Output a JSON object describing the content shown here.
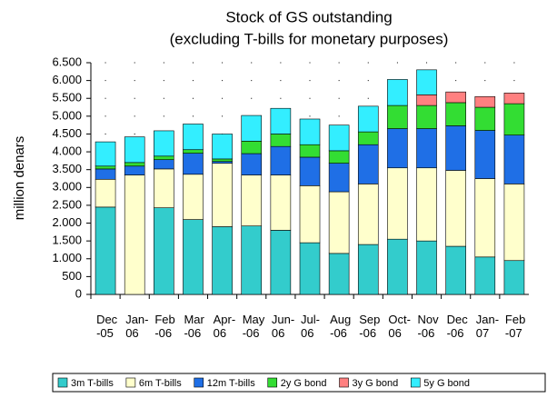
{
  "chart_data": {
    "type": "stacked_bar",
    "title": "Stock of GS outstanding",
    "subtitle": "(excluding T-bills for monetary purposes)",
    "y_label": "million denars",
    "categories": [
      "Dec-05",
      "Jan-06",
      "Feb-06",
      "Mar-06",
      "Apr-06",
      "May-06",
      "Jun-06",
      "Jul-06",
      "Aug-06",
      "Sep-06",
      "Oct-06",
      "Nov-06",
      "Dec-06",
      "Jan-07",
      "Feb-07"
    ],
    "series": [
      {
        "name": "3m T-bills",
        "color": "#33cccc",
        "values": [
          2450,
          0,
          2430,
          2100,
          1900,
          1920,
          1800,
          1450,
          1150,
          1400,
          1550,
          1500,
          1350,
          1050,
          950
        ]
      },
      {
        "name": "6m T-bills",
        "color": "#ffffcc",
        "values": [
          780,
          3350,
          1090,
          1270,
          1780,
          1430,
          1550,
          1600,
          1730,
          1700,
          2000,
          2050,
          2130,
          2200,
          2150
        ]
      },
      {
        "name": "12m T-bills",
        "color": "#1f6fe6",
        "values": [
          290,
          250,
          260,
          590,
          50,
          600,
          800,
          800,
          800,
          1100,
          1100,
          1100,
          1250,
          1350,
          1370
        ]
      },
      {
        "name": "2y G bond",
        "color": "#33dd33",
        "values": [
          80,
          100,
          100,
          100,
          70,
          350,
          350,
          350,
          350,
          360,
          650,
          650,
          650,
          650,
          880
        ]
      },
      {
        "name": "3y G bond",
        "color": "#ff8080",
        "values": [
          0,
          0,
          0,
          0,
          0,
          0,
          0,
          0,
          0,
          0,
          0,
          300,
          300,
          300,
          300
        ]
      },
      {
        "name": "5y G bond",
        "color": "#33eeff",
        "values": [
          680,
          720,
          710,
          720,
          700,
          720,
          720,
          720,
          720,
          720,
          730,
          700,
          0,
          0,
          0
        ]
      }
    ],
    "ylim": [
      0,
      6500
    ],
    "yticks": [
      0,
      {
        "value": 500,
        "label": "500"
      },
      {
        "value": 1000,
        "label": "1.000"
      },
      {
        "value": 1500,
        "label": "1.500"
      },
      {
        "value": 2000,
        "label": "2.000"
      },
      {
        "value": 2500,
        "label": "2.500"
      },
      {
        "value": 3000,
        "label": "3.000"
      },
      {
        "value": 3500,
        "label": "3.500"
      },
      {
        "value": 4000,
        "label": "4.000"
      },
      {
        "value": 4500,
        "label": "4.500"
      },
      {
        "value": 5000,
        "label": "5.000"
      },
      {
        "value": 5500,
        "label": "5.500"
      },
      {
        "value": 6000,
        "label": "6.000"
      },
      {
        "value": 6500,
        "label": "6.500"
      }
    ],
    "grid": true
  }
}
